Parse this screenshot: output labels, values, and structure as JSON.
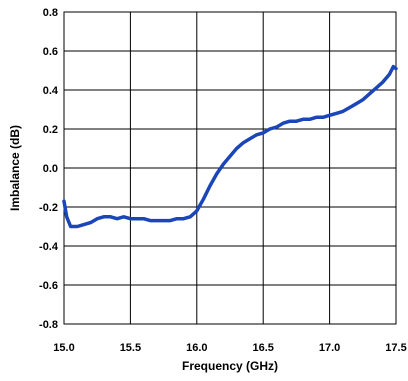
{
  "chart_data": {
    "type": "line",
    "title": "",
    "xlabel": "Frequency (GHz)",
    "ylabel": "Imbalance (dB)",
    "xlim": [
      15.0,
      17.5
    ],
    "ylim": [
      -0.8,
      0.8
    ],
    "x_ticks": [
      "15.0",
      "15.5",
      "16.0",
      "16.5",
      "17.0",
      "17.5"
    ],
    "y_ticks": [
      "0.8",
      "0.6",
      "0.4",
      "0.2",
      "0.0",
      "-0.2",
      "-0.4",
      "-0.6",
      "-0.8"
    ],
    "grid": true,
    "legend": "none",
    "series": [
      {
        "color": "#1a46b8",
        "points": [
          [
            15.0,
            -0.17
          ],
          [
            15.02,
            -0.25
          ],
          [
            15.05,
            -0.3
          ],
          [
            15.1,
            -0.3
          ],
          [
            15.15,
            -0.29
          ],
          [
            15.2,
            -0.28
          ],
          [
            15.25,
            -0.26
          ],
          [
            15.3,
            -0.25
          ],
          [
            15.35,
            -0.25
          ],
          [
            15.4,
            -0.26
          ],
          [
            15.45,
            -0.25
          ],
          [
            15.5,
            -0.26
          ],
          [
            15.55,
            -0.26
          ],
          [
            15.6,
            -0.26
          ],
          [
            15.65,
            -0.27
          ],
          [
            15.7,
            -0.27
          ],
          [
            15.75,
            -0.27
          ],
          [
            15.8,
            -0.27
          ],
          [
            15.85,
            -0.26
          ],
          [
            15.9,
            -0.26
          ],
          [
            15.95,
            -0.25
          ],
          [
            16.0,
            -0.22
          ],
          [
            16.05,
            -0.16
          ],
          [
            16.1,
            -0.09
          ],
          [
            16.15,
            -0.03
          ],
          [
            16.2,
            0.02
          ],
          [
            16.25,
            0.06
          ],
          [
            16.3,
            0.1
          ],
          [
            16.35,
            0.13
          ],
          [
            16.4,
            0.15
          ],
          [
            16.45,
            0.17
          ],
          [
            16.5,
            0.18
          ],
          [
            16.55,
            0.2
          ],
          [
            16.6,
            0.21
          ],
          [
            16.65,
            0.23
          ],
          [
            16.7,
            0.24
          ],
          [
            16.75,
            0.24
          ],
          [
            16.8,
            0.25
          ],
          [
            16.85,
            0.25
          ],
          [
            16.9,
            0.26
          ],
          [
            16.95,
            0.26
          ],
          [
            17.0,
            0.27
          ],
          [
            17.05,
            0.28
          ],
          [
            17.1,
            0.29
          ],
          [
            17.15,
            0.31
          ],
          [
            17.2,
            0.33
          ],
          [
            17.25,
            0.35
          ],
          [
            17.3,
            0.38
          ],
          [
            17.35,
            0.41
          ],
          [
            17.4,
            0.44
          ],
          [
            17.45,
            0.48
          ],
          [
            17.48,
            0.52
          ],
          [
            17.5,
            0.51
          ]
        ]
      }
    ]
  }
}
